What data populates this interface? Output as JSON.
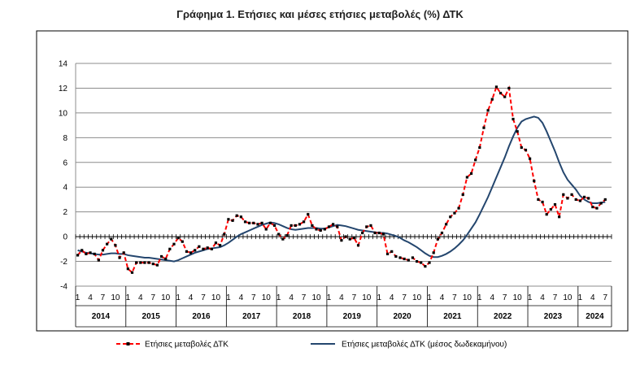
{
  "chart_data": {
    "type": "line",
    "title": "Γράφημα 1. Ετήσιες και μέσες ετήσιες μεταβολές (%) ΔΤΚ",
    "ylim": [
      -4,
      14
    ],
    "yticks": [
      "14",
      "12",
      "10",
      "8",
      "6",
      "4",
      "2",
      "0",
      "-2",
      "-4"
    ],
    "month_tick_labels": [
      "1",
      "4",
      "7",
      "10"
    ],
    "years": [
      "2014",
      "2015",
      "2016",
      "2017",
      "2018",
      "2019",
      "2020",
      "2021",
      "2022",
      "2023",
      "2024"
    ],
    "x_start": "2014-01",
    "x_end": "2024-08",
    "grid": true,
    "legend_position": "bottom",
    "series": [
      {
        "name": "Ετήσιες μεταβολές ΔΤΚ",
        "color": "#ff0000",
        "marker_color": "#000000",
        "style": "dashed-markers",
        "values": [
          -1.5,
          -1.1,
          -1.4,
          -1.3,
          -1.4,
          -1.9,
          -1.1,
          -0.6,
          -0.2,
          -0.7,
          -1.7,
          -1.3,
          -2.6,
          -2.9,
          -2.1,
          -2.1,
          -2.1,
          -2.1,
          -2.2,
          -2.3,
          -1.6,
          -1.8,
          -1.0,
          -0.6,
          -0.1,
          -0.4,
          -1.2,
          -1.3,
          -1.1,
          -0.8,
          -1.0,
          -0.9,
          -1.0,
          -0.5,
          -0.7,
          0.2,
          1.4,
          1.3,
          1.7,
          1.6,
          1.2,
          1.1,
          1.1,
          1.0,
          1.1,
          0.6,
          1.1,
          0.9,
          0.2,
          -0.2,
          0.1,
          0.9,
          0.9,
          1.0,
          1.2,
          1.8,
          0.9,
          0.6,
          0.5,
          0.6,
          0.8,
          1.0,
          0.8,
          -0.3,
          0.0,
          -0.2,
          -0.1,
          -0.7,
          0.3,
          0.8,
          0.9,
          0.3,
          0.3,
          0.2,
          -1.4,
          -1.2,
          -1.6,
          -1.7,
          -1.8,
          -1.9,
          -1.7,
          -2.0,
          -2.1,
          -2.4,
          -2.1,
          -1.3,
          -0.2,
          0.3,
          1.0,
          1.6,
          1.9,
          2.3,
          3.4,
          4.8,
          5.1,
          6.2,
          7.2,
          8.8,
          10.2,
          11.1,
          12.1,
          11.6,
          11.3,
          12.0,
          9.5,
          8.5,
          7.2,
          7.0,
          6.3,
          4.5,
          3.0,
          2.8,
          1.8,
          2.2,
          2.6,
          1.6,
          3.4,
          3.1,
          3.4,
          3.0,
          2.9,
          3.2,
          3.1,
          2.4,
          2.3,
          2.7,
          3.0
        ]
      },
      {
        "name": "Ετήσιες μεταβολές ΔΤΚ (μέσος δωδεκαμήνου)",
        "color": "#24466e",
        "style": "solid",
        "values": [
          -1.1,
          -1.2,
          -1.3,
          -1.35,
          -1.4,
          -1.45,
          -1.45,
          -1.4,
          -1.35,
          -1.35,
          -1.4,
          -1.4,
          -1.5,
          -1.55,
          -1.6,
          -1.65,
          -1.7,
          -1.7,
          -1.75,
          -1.8,
          -1.85,
          -1.9,
          -1.95,
          -2.0,
          -1.9,
          -1.75,
          -1.6,
          -1.45,
          -1.3,
          -1.2,
          -1.1,
          -1.0,
          -0.95,
          -0.9,
          -0.85,
          -0.7,
          -0.5,
          -0.25,
          0.0,
          0.2,
          0.35,
          0.5,
          0.65,
          0.8,
          0.95,
          1.05,
          1.15,
          1.1,
          1.0,
          0.85,
          0.7,
          0.6,
          0.55,
          0.6,
          0.65,
          0.7,
          0.7,
          0.7,
          0.65,
          0.65,
          0.75,
          0.85,
          0.95,
          0.9,
          0.85,
          0.75,
          0.65,
          0.55,
          0.5,
          0.45,
          0.4,
          0.35,
          0.3,
          0.3,
          0.25,
          0.15,
          0.05,
          -0.1,
          -0.3,
          -0.45,
          -0.65,
          -0.85,
          -1.1,
          -1.35,
          -1.55,
          -1.65,
          -1.65,
          -1.55,
          -1.4,
          -1.2,
          -0.95,
          -0.65,
          -0.3,
          0.15,
          0.65,
          1.15,
          1.8,
          2.5,
          3.2,
          4.0,
          4.8,
          5.6,
          6.4,
          7.3,
          8.1,
          8.8,
          9.3,
          9.5,
          9.6,
          9.7,
          9.6,
          9.2,
          8.5,
          7.7,
          6.9,
          6.0,
          5.2,
          4.6,
          4.2,
          3.8,
          3.3,
          3.0,
          2.8,
          2.7,
          2.7,
          2.75,
          2.8
        ]
      }
    ]
  }
}
